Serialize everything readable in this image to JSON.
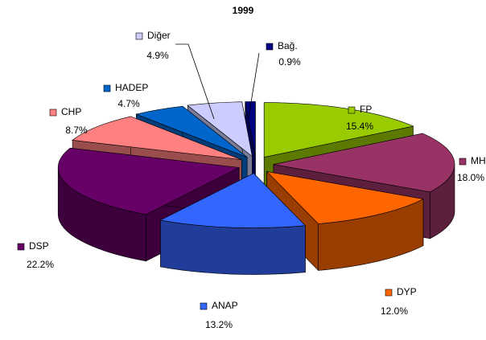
{
  "chart_data": {
    "type": "pie3d",
    "title": "1999",
    "categories": [
      "FP",
      "MHP",
      "DYP",
      "ANAP",
      "DSP",
      "CHP",
      "HADEP",
      "Diğer",
      "Bağ."
    ],
    "values": [
      15.4,
      18.0,
      12.0,
      13.2,
      22.2,
      8.7,
      4.7,
      4.9,
      0.9
    ],
    "value_labels": [
      "15.4%",
      "18.0%",
      "12.0%",
      "13.2%",
      "22.2%",
      "8.7%",
      "4.7%",
      "4.9%",
      "0.9%"
    ],
    "colors": [
      "#99cc00",
      "#993366",
      "#ff6600",
      "#3366ff",
      "#660066",
      "#ff8080",
      "#0066cc",
      "#ccccff",
      "#000080"
    ]
  }
}
